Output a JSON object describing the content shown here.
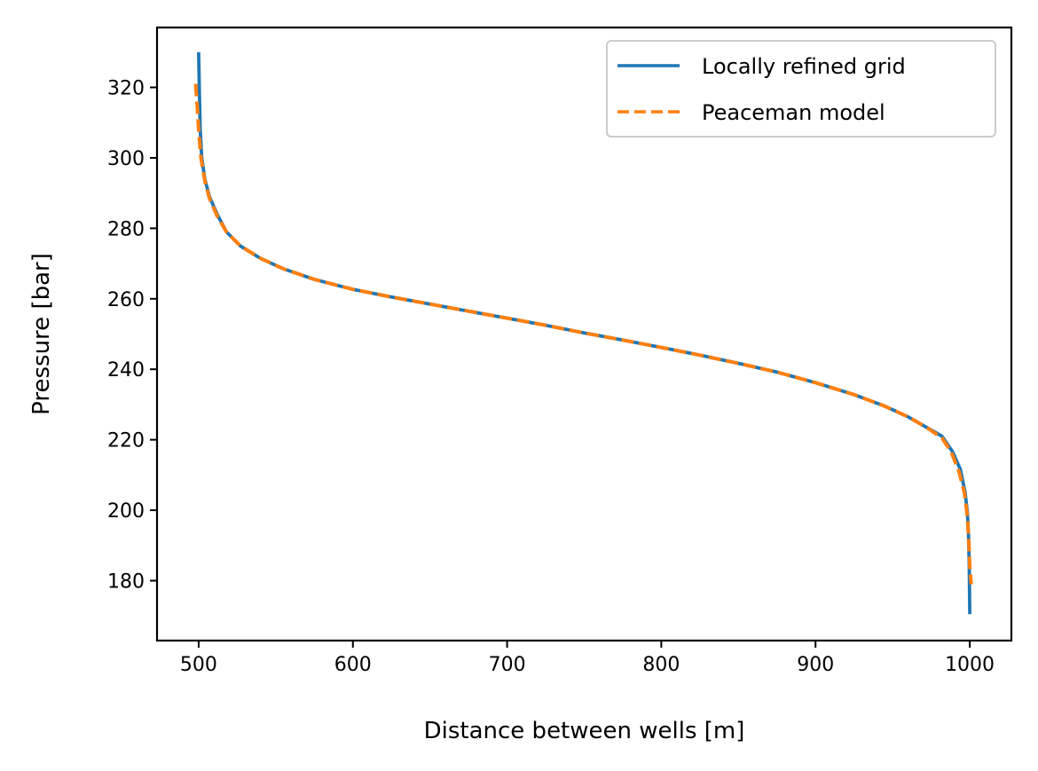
{
  "chart_data": {
    "type": "line",
    "title": "",
    "xlabel": "Distance between wells [m]",
    "ylabel": "Pressure [bar]",
    "xlim": [
      473,
      1027
    ],
    "ylim": [
      163,
      337
    ],
    "xticks": [
      500,
      600,
      700,
      800,
      900,
      1000
    ],
    "yticks": [
      180,
      200,
      220,
      240,
      260,
      280,
      300,
      320
    ],
    "grid": false,
    "legend_position": "top-right",
    "colors": {
      "locally_refined": "#1f77b4",
      "peaceman": "#ff7f0e"
    },
    "series": [
      {
        "name": "Locally refined grid",
        "style": "solid",
        "color": "#1f77b4",
        "points": [
          [
            500,
            330
          ],
          [
            500.5,
            318
          ],
          [
            501,
            308
          ],
          [
            502,
            300
          ],
          [
            504,
            294
          ],
          [
            507,
            289
          ],
          [
            512,
            284
          ],
          [
            518,
            279
          ],
          [
            527,
            275
          ],
          [
            540,
            271.5
          ],
          [
            555,
            268.5
          ],
          [
            575,
            265.5
          ],
          [
            600,
            262.7
          ],
          [
            625,
            260.5
          ],
          [
            650,
            258.5
          ],
          [
            675,
            256.5
          ],
          [
            700,
            254.5
          ],
          [
            725,
            252.5
          ],
          [
            750,
            250.3
          ],
          [
            775,
            248.3
          ],
          [
            800,
            246.2
          ],
          [
            825,
            244.0
          ],
          [
            850,
            241.7
          ],
          [
            875,
            239.2
          ],
          [
            900,
            236.2
          ],
          [
            925,
            232.8
          ],
          [
            945,
            229.5
          ],
          [
            960,
            226.5
          ],
          [
            972,
            223.5
          ],
          [
            982,
            221.0
          ],
          [
            989,
            216.5
          ],
          [
            994,
            211.5
          ],
          [
            997,
            205.0
          ],
          [
            998.5,
            199.0
          ],
          [
            999.3,
            192.0
          ],
          [
            999.7,
            184.0
          ],
          [
            1000,
            170.5
          ]
        ]
      },
      {
        "name": "Peaceman model",
        "style": "dashed",
        "color": "#ff7f0e",
        "points": [
          [
            498,
            321
          ],
          [
            499,
            315
          ],
          [
            500,
            308
          ],
          [
            501.5,
            300
          ],
          [
            504,
            293.5
          ],
          [
            507,
            288.5
          ],
          [
            512,
            283.5
          ],
          [
            518,
            279
          ],
          [
            527,
            275
          ],
          [
            540,
            271.5
          ],
          [
            555,
            268.5
          ],
          [
            575,
            265.5
          ],
          [
            600,
            262.7
          ],
          [
            625,
            260.5
          ],
          [
            650,
            258.5
          ],
          [
            675,
            256.5
          ],
          [
            700,
            254.5
          ],
          [
            725,
            252.5
          ],
          [
            750,
            250.3
          ],
          [
            775,
            248.3
          ],
          [
            800,
            246.2
          ],
          [
            825,
            244.0
          ],
          [
            850,
            241.7
          ],
          [
            875,
            239.2
          ],
          [
            900,
            236.2
          ],
          [
            925,
            232.8
          ],
          [
            945,
            229.5
          ],
          [
            960,
            226.5
          ],
          [
            972,
            223.5
          ],
          [
            982,
            220.5
          ],
          [
            988,
            216.5
          ],
          [
            993,
            211.0
          ],
          [
            996.5,
            205.0
          ],
          [
            998.5,
            198.0
          ],
          [
            999.5,
            190.0
          ],
          [
            1000,
            184.0
          ],
          [
            1001,
            179.0
          ]
        ]
      }
    ]
  }
}
